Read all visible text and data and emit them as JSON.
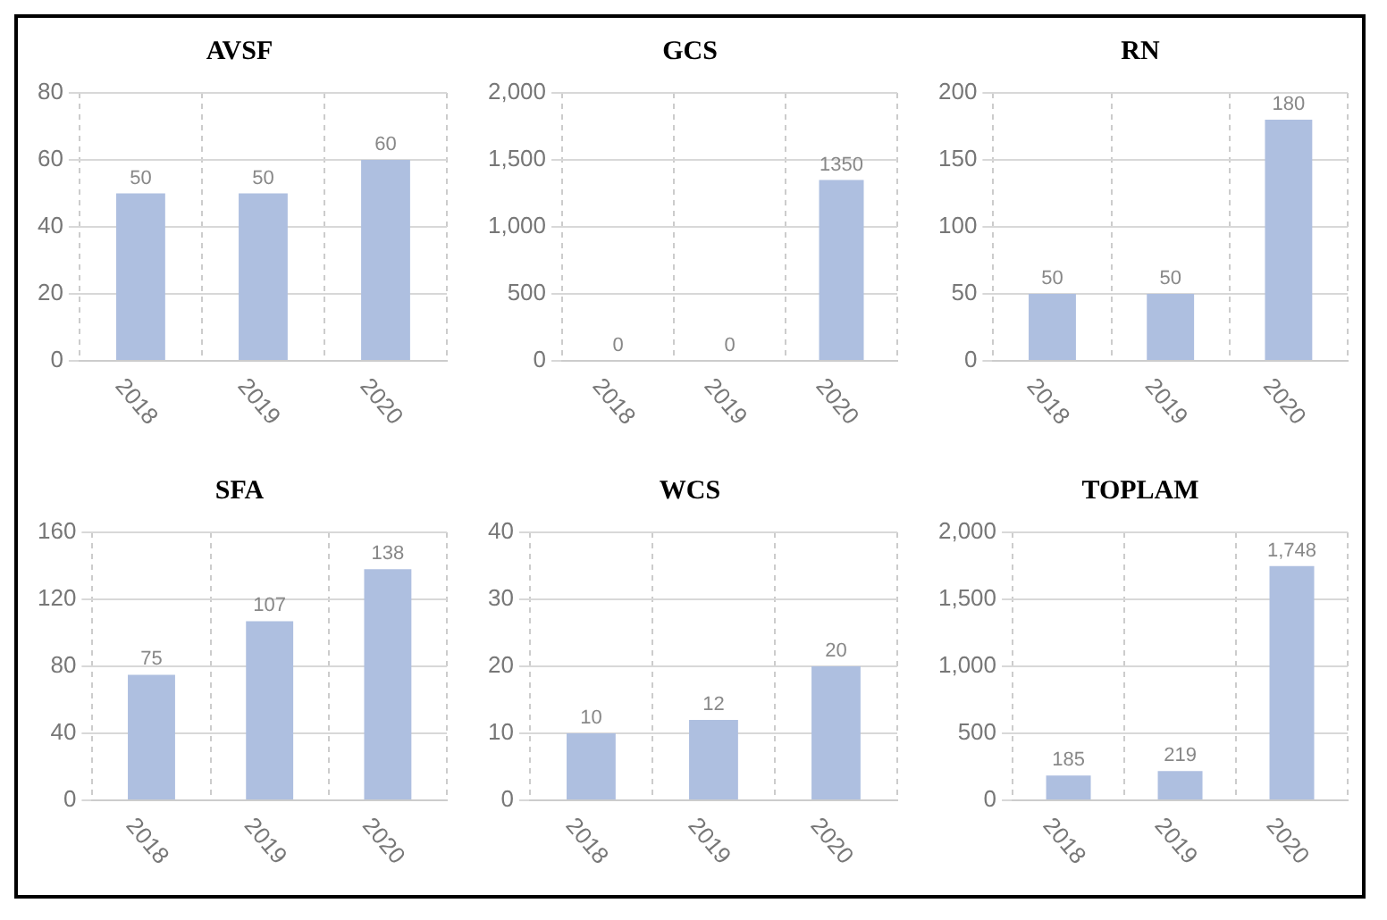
{
  "chart_data": [
    {
      "type": "bar",
      "title": "AVSF",
      "categories": [
        "2018",
        "2019",
        "2020"
      ],
      "values": [
        50,
        50,
        60
      ],
      "value_labels": [
        "50",
        "50",
        "60"
      ],
      "color": "#aebfe0",
      "ylim": [
        0,
        80
      ],
      "yticks": [
        0,
        20,
        40,
        60,
        80
      ],
      "grid": true
    },
    {
      "type": "bar",
      "title": "GCS",
      "categories": [
        "2018",
        "2019",
        "2020"
      ],
      "values": [
        0,
        0,
        1350
      ],
      "value_labels": [
        "0",
        "0",
        "1350"
      ],
      "color": "#aebfe0",
      "ylim": [
        0,
        2000
      ],
      "yticks": [
        0,
        {
          "value": 500,
          "label": "500"
        },
        {
          "value": 1000,
          "label": "1,000"
        },
        {
          "value": 1500,
          "label": "1,500"
        },
        {
          "value": 2000,
          "label": "2,000"
        }
      ],
      "grid": true
    },
    {
      "type": "bar",
      "title": "RN",
      "categories": [
        "2018",
        "2019",
        "2020"
      ],
      "values": [
        50,
        50,
        180
      ],
      "value_labels": [
        "50",
        "50",
        "180"
      ],
      "color": "#aebfe0",
      "ylim": [
        0,
        200
      ],
      "yticks": [
        0,
        50,
        100,
        150,
        200
      ],
      "grid": true
    },
    {
      "type": "bar",
      "title": "SFA",
      "categories": [
        "2018",
        "2019",
        "2020"
      ],
      "values": [
        75,
        107,
        138
      ],
      "value_labels": [
        "75",
        "107",
        "138"
      ],
      "color": "#aebfe0",
      "ylim": [
        0,
        160
      ],
      "yticks": [
        0,
        40,
        80,
        120,
        160
      ],
      "grid": true
    },
    {
      "type": "bar",
      "title": "WCS",
      "categories": [
        "2018",
        "2019",
        "2020"
      ],
      "values": [
        10,
        12,
        20
      ],
      "value_labels": [
        "10",
        "12",
        "20"
      ],
      "color": "#aebfe0",
      "ylim": [
        0,
        40
      ],
      "yticks": [
        0,
        10,
        20,
        30,
        40
      ],
      "grid": true
    },
    {
      "type": "bar",
      "title": "TOPLAM",
      "categories": [
        "2018",
        "2019",
        "2020"
      ],
      "values": [
        185,
        219,
        1748
      ],
      "value_labels": [
        "185",
        "219",
        "1,748"
      ],
      "color": "#aebfe0",
      "ylim": [
        0,
        2000
      ],
      "yticks": [
        0,
        {
          "value": 500,
          "label": "500"
        },
        {
          "value": 1000,
          "label": "1,000"
        },
        {
          "value": 1500,
          "label": "1,500"
        },
        {
          "value": 2000,
          "label": "2,000"
        }
      ],
      "grid": true
    }
  ]
}
